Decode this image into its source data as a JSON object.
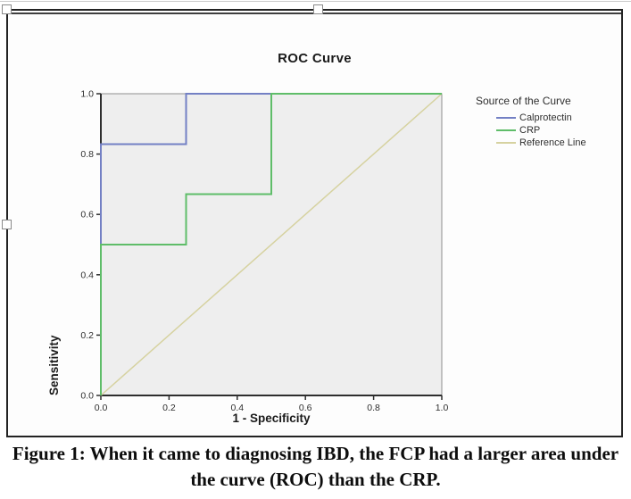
{
  "caption": {
    "line1": "Figure 1: When it came to diagnosing IBD, the FCP had a larger area under",
    "line2": "the curve (ROC) than the CRP."
  },
  "chart_data": {
    "type": "line",
    "title": "ROC Curve",
    "xlabel": "1 - Specificity",
    "ylabel": "Sensitivity",
    "xlim": [
      0,
      1
    ],
    "ylim": [
      0,
      1
    ],
    "xtick_labels": [
      "0.0",
      "0.2",
      "0.4",
      "0.6",
      "0.8",
      "1.0"
    ],
    "ytick_labels": [
      "0.0",
      "0.2",
      "0.4",
      "0.6",
      "0.8",
      "1.0"
    ],
    "grid": false,
    "plot_background": "#eeeeee",
    "legend": {
      "title": "Source of the Curve",
      "position": "right"
    },
    "series": [
      {
        "name": "Calprotectin",
        "color": "#7380c4",
        "points": [
          [
            0,
            0
          ],
          [
            0,
            0.833
          ],
          [
            0.25,
            0.833
          ],
          [
            0.25,
            1
          ],
          [
            1,
            1
          ]
        ]
      },
      {
        "name": "CRP",
        "color": "#5fbd69",
        "points": [
          [
            0,
            0
          ],
          [
            0,
            0.5
          ],
          [
            0.25,
            0.5
          ],
          [
            0.25,
            0.667
          ],
          [
            0.5,
            0.667
          ],
          [
            0.5,
            1
          ],
          [
            1,
            1
          ]
        ]
      },
      {
        "name": "Reference Line",
        "color": "#d6d2a0",
        "points": [
          [
            0,
            0
          ],
          [
            1,
            1
          ]
        ]
      }
    ]
  }
}
